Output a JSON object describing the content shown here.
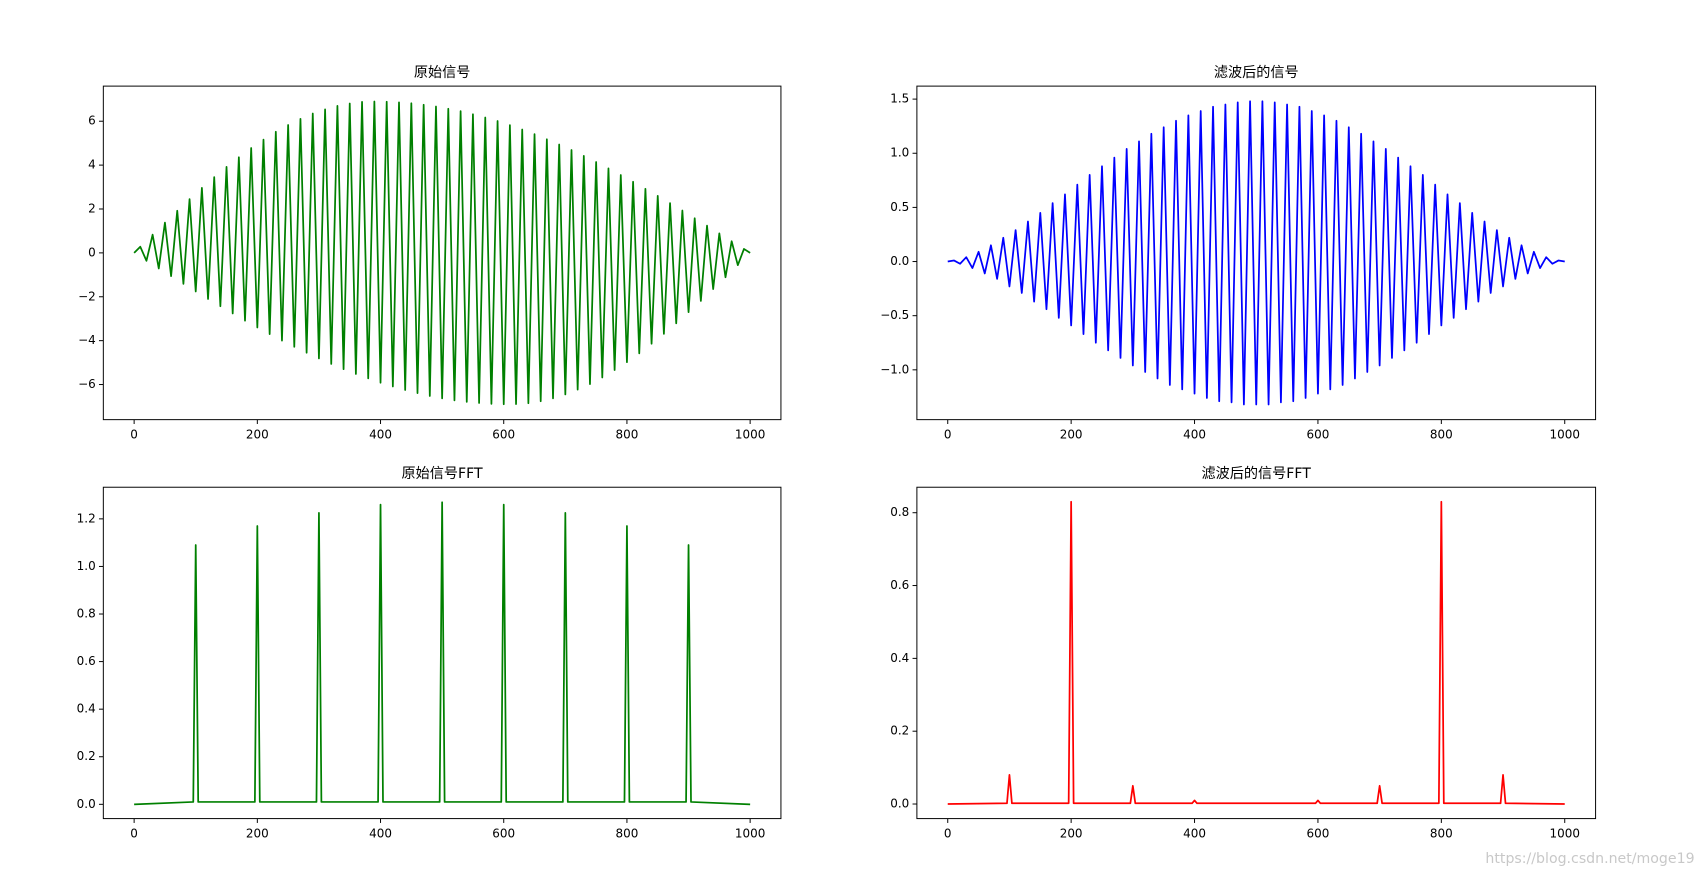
{
  "chart_data": [
    {
      "type": "line",
      "title": "原始信号",
      "color": "#008000",
      "x": [
        0,
        10,
        20,
        30,
        40,
        50,
        60,
        70,
        80,
        90,
        100,
        110,
        120,
        130,
        140,
        150,
        160,
        170,
        180,
        190,
        200,
        210,
        220,
        230,
        240,
        250,
        260,
        270,
        280,
        290,
        300,
        310,
        320,
        330,
        340,
        350,
        360,
        370,
        380,
        390,
        400,
        410,
        420,
        430,
        440,
        450,
        460,
        470,
        480,
        490,
        500,
        510,
        520,
        530,
        540,
        550,
        560,
        570,
        580,
        590,
        600,
        610,
        620,
        630,
        640,
        650,
        660,
        670,
        680,
        690,
        700,
        710,
        720,
        730,
        740,
        750,
        760,
        770,
        780,
        790,
        800,
        810,
        820,
        830,
        840,
        850,
        860,
        870,
        880,
        890,
        900,
        910,
        920,
        930,
        940,
        950,
        960,
        970,
        980,
        990,
        1000
      ],
      "values": [
        0,
        0.28,
        -0.36,
        0.83,
        -0.71,
        1.38,
        -1.06,
        1.92,
        -1.41,
        2.45,
        -1.76,
        2.96,
        -2.1,
        3.45,
        -2.43,
        3.92,
        -2.76,
        4.36,
        -3.09,
        4.78,
        -3.4,
        5.16,
        -3.7,
        5.52,
        -4.0,
        5.83,
        -4.28,
        6.11,
        -4.55,
        6.35,
        -4.81,
        6.54,
        -5.06,
        6.7,
        -5.3,
        6.81,
        -5.52,
        6.88,
        -5.72,
        6.9,
        -5.92,
        6.89,
        -6.09,
        6.86,
        -6.25,
        6.82,
        -6.39,
        6.75,
        -6.52,
        6.67,
        -6.63,
        6.57,
        -6.72,
        6.46,
        -6.79,
        6.32,
        -6.84,
        6.17,
        -6.88,
        6.01,
        -6.9,
        5.82,
        -6.89,
        5.62,
        -6.85,
        5.41,
        -6.76,
        5.18,
        -6.63,
        4.94,
        -6.45,
        4.69,
        -6.23,
        4.42,
        -5.98,
        4.14,
        -5.68,
        3.85,
        -5.34,
        3.55,
        -4.98,
        3.24,
        -4.58,
        2.92,
        -4.14,
        2.6,
        -3.69,
        2.27,
        -3.21,
        1.93,
        -2.7,
        1.58,
        -2.19,
        1.24,
        -1.65,
        0.89,
        -1.11,
        0.53,
        -0.56,
        0.18,
        0
      ],
      "xlim": [
        -50,
        1050
      ],
      "xticks": [
        0,
        200,
        400,
        600,
        800,
        1000
      ],
      "ylim": [
        -7.6,
        7.6
      ],
      "yticks": [
        {
          "value": -6,
          "label": "−6"
        },
        {
          "value": -4,
          "label": "−4"
        },
        {
          "value": -2,
          "label": "−2"
        },
        0,
        2,
        4,
        6
      ]
    },
    {
      "type": "line",
      "title": "滤波后的信号",
      "color": "#0000ff",
      "x": [
        0,
        10,
        20,
        30,
        40,
        50,
        60,
        70,
        80,
        90,
        100,
        110,
        120,
        130,
        140,
        150,
        160,
        170,
        180,
        190,
        200,
        210,
        220,
        230,
        240,
        250,
        260,
        270,
        280,
        290,
        300,
        310,
        320,
        330,
        340,
        350,
        360,
        370,
        380,
        390,
        400,
        410,
        420,
        430,
        440,
        450,
        460,
        470,
        480,
        490,
        500,
        510,
        520,
        530,
        540,
        550,
        560,
        570,
        580,
        590,
        600,
        610,
        620,
        630,
        640,
        650,
        660,
        670,
        680,
        690,
        700,
        710,
        720,
        730,
        740,
        750,
        760,
        770,
        780,
        790,
        800,
        810,
        820,
        830,
        840,
        850,
        860,
        870,
        880,
        890,
        900,
        910,
        920,
        930,
        940,
        950,
        960,
        970,
        980,
        990,
        1000
      ],
      "values": [
        0,
        0.01,
        -0.02,
        0.04,
        -0.06,
        0.09,
        -0.11,
        0.15,
        -0.16,
        0.22,
        -0.23,
        0.29,
        -0.29,
        0.37,
        -0.37,
        0.45,
        -0.44,
        0.54,
        -0.52,
        0.62,
        -0.59,
        0.71,
        -0.67,
        0.8,
        -0.75,
        0.88,
        -0.82,
        0.96,
        -0.89,
        1.04,
        -0.96,
        1.11,
        -1.02,
        1.18,
        -1.08,
        1.24,
        -1.14,
        1.3,
        -1.18,
        1.35,
        -1.22,
        1.39,
        -1.26,
        1.43,
        -1.29,
        1.45,
        -1.3,
        1.47,
        -1.32,
        1.48,
        -1.32,
        1.48,
        -1.32,
        1.47,
        -1.3,
        1.45,
        -1.29,
        1.43,
        -1.26,
        1.39,
        -1.22,
        1.35,
        -1.18,
        1.3,
        -1.14,
        1.24,
        -1.08,
        1.18,
        -1.02,
        1.11,
        -0.96,
        1.04,
        -0.89,
        0.96,
        -0.82,
        0.88,
        -0.75,
        0.8,
        -0.67,
        0.71,
        -0.59,
        0.62,
        -0.52,
        0.54,
        -0.44,
        0.45,
        -0.37,
        0.37,
        -0.29,
        0.29,
        -0.23,
        0.22,
        -0.16,
        0.15,
        -0.11,
        0.09,
        -0.06,
        0.04,
        -0.02,
        0.01,
        0
      ],
      "xlim": [
        -50,
        1050
      ],
      "xticks": [
        0,
        200,
        400,
        600,
        800,
        1000
      ],
      "ylim": [
        -1.46,
        1.62
      ],
      "yticks": [
        {
          "value": -1.0,
          "label": "−1.0"
        },
        {
          "value": -0.5,
          "label": "−0.5"
        },
        {
          "value": 0,
          "label": "0.0"
        },
        0.5,
        {
          "value": 1,
          "label": "1.0"
        },
        1.5
      ]
    },
    {
      "type": "line",
      "title": "原始信号FFT",
      "color": "#008000",
      "x": [
        0,
        96,
        100,
        104,
        196,
        200,
        204,
        296,
        300,
        304,
        396,
        400,
        404,
        496,
        500,
        504,
        596,
        600,
        604,
        696,
        700,
        704,
        796,
        800,
        804,
        896,
        900,
        904,
        1000
      ],
      "values": [
        0,
        0.01,
        1.09,
        0.01,
        0.01,
        1.17,
        0.01,
        0.01,
        1.225,
        0.01,
        0.01,
        1.26,
        0.01,
        0.01,
        1.27,
        0.01,
        0.01,
        1.26,
        0.01,
        0.01,
        1.225,
        0.01,
        0.01,
        1.17,
        0.01,
        0.01,
        1.09,
        0.01,
        0
      ],
      "xlim": [
        -50,
        1050
      ],
      "xticks": [
        0,
        200,
        400,
        600,
        800,
        1000
      ],
      "ylim": [
        -0.06,
        1.333
      ],
      "yticks": [
        {
          "value": 0,
          "label": "0.0"
        },
        0.2,
        0.4,
        0.6,
        0.8,
        {
          "value": 1,
          "label": "1.0"
        },
        1.2
      ]
    },
    {
      "type": "line",
      "title": "滤波后的信号FFT",
      "color": "#ff0000",
      "x": [
        0,
        96,
        100,
        104,
        196,
        200,
        204,
        296,
        300,
        304,
        396,
        400,
        404,
        596,
        600,
        604,
        696,
        700,
        704,
        796,
        800,
        804,
        896,
        900,
        904,
        1000
      ],
      "values": [
        0,
        0.002,
        0.08,
        0.002,
        0.002,
        0.83,
        0.002,
        0.002,
        0.05,
        0.002,
        0.002,
        0.01,
        0.002,
        0.002,
        0.01,
        0.002,
        0.002,
        0.05,
        0.002,
        0.002,
        0.83,
        0.002,
        0.002,
        0.08,
        0.002,
        0
      ],
      "xlim": [
        -50,
        1050
      ],
      "xticks": [
        0,
        200,
        400,
        600,
        800,
        1000
      ],
      "ylim": [
        -0.04,
        0.87
      ],
      "yticks": [
        {
          "value": 0,
          "label": "0.0"
        },
        0.2,
        0.4,
        0.6,
        0.8
      ]
    }
  ],
  "watermark": "https://blog.csdn.net/moge19"
}
